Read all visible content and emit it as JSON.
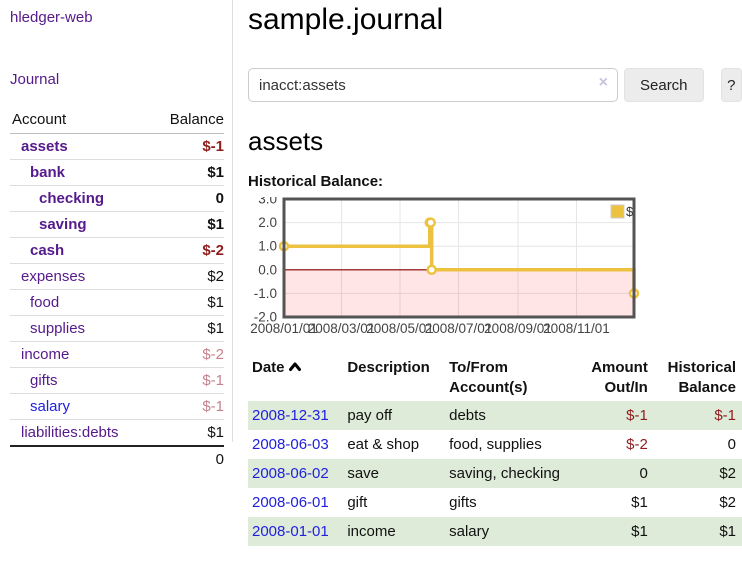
{
  "colors": {
    "link_purple": "#551a8b",
    "link_blue": "#2121dd",
    "negative_strong": "#8f1d1d",
    "negative_faded": "#c5828c",
    "row_stripe": "#deebd8",
    "chart_line": "#edc240",
    "chart_zero_line": "#8b0000",
    "chart_negative_fill": "rgba(255,0,0,0.10)",
    "chart_border": "#545454",
    "chart_grid": "#e6e6e6"
  },
  "sidebar": {
    "app_title": "hledger-web",
    "journal_label": "Journal",
    "accounts_table": {
      "headers": [
        "Account",
        "Balance"
      ],
      "rows": [
        {
          "account": "assets",
          "indent": 1,
          "bold": true,
          "link_color": "purple",
          "balance": "$-1",
          "balance_tone": "neg-strong"
        },
        {
          "account": "bank",
          "indent": 2,
          "bold": true,
          "link_color": "purple",
          "balance": "$1",
          "balance_tone": "normal"
        },
        {
          "account": "checking",
          "indent": 3,
          "bold": true,
          "link_color": "purple",
          "balance": "0",
          "balance_tone": "normal"
        },
        {
          "account": "saving",
          "indent": 3,
          "bold": true,
          "link_color": "purple",
          "balance": "$1",
          "balance_tone": "normal"
        },
        {
          "account": "cash",
          "indent": 2,
          "bold": true,
          "link_color": "purple",
          "balance": "$-2",
          "balance_tone": "neg-strong"
        },
        {
          "account": "expenses",
          "indent": 1,
          "bold": false,
          "link_color": "purple",
          "balance": "$2",
          "balance_tone": "normal"
        },
        {
          "account": "food",
          "indent": 2,
          "bold": false,
          "link_color": "purple",
          "balance": "$1",
          "balance_tone": "normal"
        },
        {
          "account": "supplies",
          "indent": 2,
          "bold": false,
          "link_color": "purple",
          "balance": "$1",
          "balance_tone": "normal"
        },
        {
          "account": "income",
          "indent": 1,
          "bold": false,
          "link_color": "purple",
          "balance": "$-2",
          "balance_tone": "neg-faded"
        },
        {
          "account": "gifts",
          "indent": 2,
          "bold": false,
          "link_color": "purple",
          "balance": "$-1",
          "balance_tone": "neg-faded"
        },
        {
          "account": "salary",
          "indent": 2,
          "bold": false,
          "link_color": "blue",
          "balance": "$-1",
          "balance_tone": "neg-faded"
        },
        {
          "account": "liabilities:debts",
          "indent": 1,
          "bold": false,
          "link_color": "purple",
          "balance": "$1",
          "balance_tone": "normal"
        }
      ],
      "total": "0"
    }
  },
  "main": {
    "title": "sample.journal",
    "search": {
      "value": "inacct:assets",
      "clear_icon": "×",
      "button_label": "Search",
      "help_label": "?"
    },
    "account_heading": "assets",
    "chart_label": "Historical Balance:",
    "register_table": {
      "headers": [
        "Date",
        "Description",
        "To/From\nAccount(s)",
        "Amount\nOut/In",
        "Historical\nBalance"
      ],
      "rows": [
        {
          "date": "2008-12-31",
          "description": "pay off",
          "accounts": "debts",
          "amount": "$-1",
          "amount_negative": true,
          "balance": "$-1",
          "balance_negative": true
        },
        {
          "date": "2008-06-03",
          "description": "eat & shop",
          "accounts": "food, supplies",
          "amount": "$-2",
          "amount_negative": true,
          "balance": "0",
          "balance_negative": false
        },
        {
          "date": "2008-06-02",
          "description": "save",
          "accounts": "saving, checking",
          "amount": "0",
          "amount_negative": false,
          "balance": "$2",
          "balance_negative": false
        },
        {
          "date": "2008-06-01",
          "description": "gift",
          "accounts": "gifts",
          "amount": "$1",
          "amount_negative": false,
          "balance": "$2",
          "balance_negative": false
        },
        {
          "date": "2008-01-01",
          "description": "income",
          "accounts": "salary",
          "amount": "$1",
          "amount_negative": false,
          "balance": "$1",
          "balance_negative": false
        }
      ]
    }
  },
  "chart_data": {
    "type": "line",
    "title": "Historical Balance",
    "step": true,
    "series": [
      {
        "name": "$",
        "points": [
          {
            "date": "2008-01-01",
            "day": 0,
            "value": 1
          },
          {
            "date": "2008-06-01",
            "day": 152,
            "value": 2
          },
          {
            "date": "2008-06-02",
            "day": 153,
            "value": 2
          },
          {
            "date": "2008-06-03",
            "day": 154,
            "value": 0
          },
          {
            "date": "2008-12-31",
            "day": 365,
            "value": -1
          }
        ]
      }
    ],
    "x_ticks": [
      {
        "label": "2008/01/01",
        "day": 0
      },
      {
        "label": "2008/03/01",
        "day": 60
      },
      {
        "label": "2008/05/01",
        "day": 121
      },
      {
        "label": "2008/07/01",
        "day": 182
      },
      {
        "label": "2008/09/01",
        "day": 244
      },
      {
        "label": "2008/11/01",
        "day": 305
      }
    ],
    "x_range_days": [
      0,
      365
    ],
    "y_ticks": [
      3.0,
      2.0,
      1.0,
      0.0,
      -1.0,
      -2.0
    ],
    "y_range": [
      -2,
      3
    ],
    "grid": true,
    "legend": {
      "label": "$",
      "position": "top-right"
    },
    "negative_region_shaded": true,
    "zero_line": true
  }
}
